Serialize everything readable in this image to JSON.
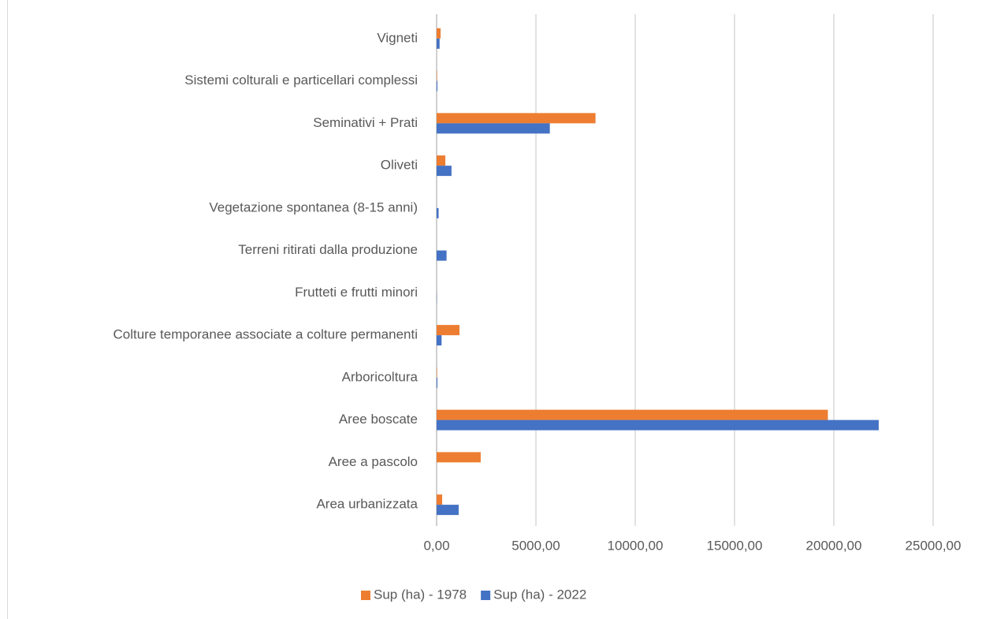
{
  "chart_data": {
    "type": "bar",
    "orientation": "horizontal",
    "categories": [
      "Vigneti",
      "Sistemi colturali e particellari complessi",
      "Seminativi + Prati",
      "Oliveti",
      "Vegetazione spontanea (8-15 anni)",
      "Terreni ritirati dalla produzione",
      "Frutteti e frutti minori",
      "Colture temporanee associate a colture permanenti",
      "Arboricoltura",
      "Aree boscate",
      "Aree a pascolo",
      "Area urbanizzata"
    ],
    "series": [
      {
        "name": "Sup (ha) - 1978",
        "color": "#ed7d31",
        "values": [
          200,
          20,
          8000,
          440,
          0,
          0,
          0,
          1150,
          20,
          19700,
          2220,
          280
        ]
      },
      {
        "name": "Sup (ha) - 2022",
        "color": "#4472c4",
        "values": [
          150,
          40,
          5700,
          750,
          100,
          500,
          10,
          250,
          40,
          22260,
          0,
          1110
        ]
      }
    ],
    "xlim": [
      0,
      25000
    ],
    "xticks": [
      {
        "value": 0,
        "label": "0,00"
      },
      {
        "value": 5000,
        "label": "5000,00"
      },
      {
        "value": 10000,
        "label": "10000,00"
      },
      {
        "value": 15000,
        "label": "15000,00"
      },
      {
        "value": 20000,
        "label": "20000,00"
      },
      {
        "value": 25000,
        "label": "25000,00"
      }
    ],
    "grid": true,
    "legend": "bottom"
  }
}
